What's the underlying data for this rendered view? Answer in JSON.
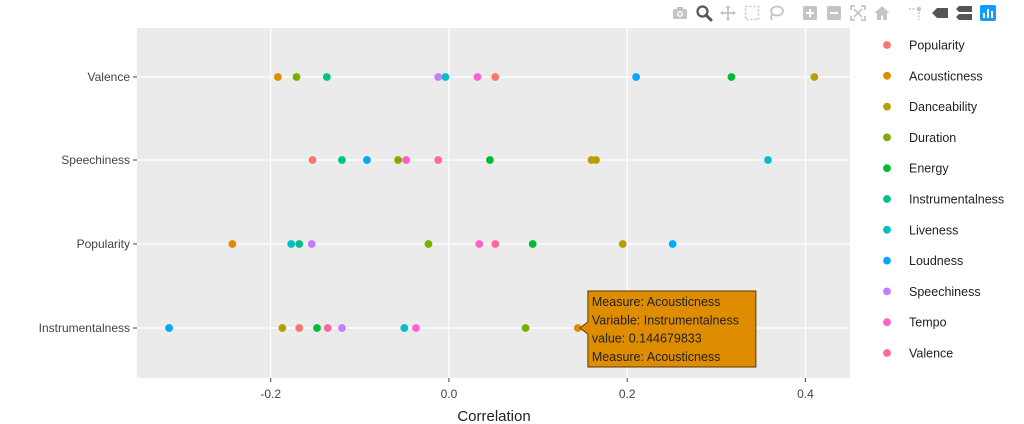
{
  "modebar": {
    "buttons": [
      {
        "name": "camera-icon",
        "title": "Download plot as a png"
      },
      {
        "name": "zoom-icon",
        "title": "Zoom"
      },
      {
        "name": "pan-icon",
        "title": "Pan"
      },
      {
        "name": "box-select-icon",
        "title": "Box Select"
      },
      {
        "name": "lasso-select-icon",
        "title": "Lasso Select"
      },
      {
        "name": "zoom-in-icon",
        "title": "Zoom in"
      },
      {
        "name": "zoom-out-icon",
        "title": "Zoom out"
      },
      {
        "name": "autoscale-icon",
        "title": "Autoscale"
      },
      {
        "name": "home-icon",
        "title": "Reset axes"
      },
      {
        "name": "spike-lines-icon",
        "title": "Toggle Spike Lines"
      },
      {
        "name": "hover-closest-icon",
        "title": "Show closest data on hover"
      },
      {
        "name": "hover-compare-icon",
        "title": "Compare data on hover"
      },
      {
        "name": "plotly-logo-icon",
        "title": "Produced with Plotly"
      }
    ]
  },
  "chart_data": {
    "type": "scatter",
    "title": "",
    "xlabel": "Correlation",
    "ylabel": "",
    "xlim": [
      -0.35,
      0.45
    ],
    "xticks": [
      -0.2,
      0,
      0.2,
      0.4
    ],
    "xtick_labels": [
      "-0.2",
      "0.0",
      "0.2",
      "0.4"
    ],
    "categories": [
      "Instrumentalness",
      "Popularity",
      "Speechiness",
      "Valence"
    ],
    "grid": true,
    "legend_position": "right",
    "background": "#ebebeb",
    "series": [
      {
        "name": "Popularity",
        "color": "#f8766d",
        "points": [
          {
            "y": "Valence",
            "x": 0.052
          },
          {
            "y": "Speechiness",
            "x": -0.153
          },
          {
            "y": "Instrumentalness",
            "x": -0.168
          }
        ]
      },
      {
        "name": "Acousticness",
        "color": "#de8c00",
        "points": [
          {
            "y": "Valence",
            "x": -0.192
          },
          {
            "y": "Popularity",
            "x": -0.243
          },
          {
            "y": "Instrumentalness",
            "x": 0.144679833
          }
        ]
      },
      {
        "name": "Danceability",
        "color": "#b79f00",
        "points": [
          {
            "y": "Valence",
            "x": 0.41
          },
          {
            "y": "Speechiness",
            "x": 0.16
          },
          {
            "y": "Speechiness",
            "x": 0.165
          },
          {
            "y": "Popularity",
            "x": 0.195
          },
          {
            "y": "Instrumentalness",
            "x": -0.187
          }
        ]
      },
      {
        "name": "Duration",
        "color": "#7cae00",
        "points": [
          {
            "y": "Valence",
            "x": -0.171
          },
          {
            "y": "Speechiness",
            "x": -0.057
          },
          {
            "y": "Popularity",
            "x": -0.023
          },
          {
            "y": "Instrumentalness",
            "x": 0.086
          }
        ]
      },
      {
        "name": "Energy",
        "color": "#00ba38",
        "points": [
          {
            "y": "Valence",
            "x": 0.317
          },
          {
            "y": "Speechiness",
            "x": 0.046
          },
          {
            "y": "Popularity",
            "x": 0.094
          },
          {
            "y": "Instrumentalness",
            "x": -0.148
          }
        ]
      },
      {
        "name": "Instrumentalness",
        "color": "#00c08b",
        "points": [
          {
            "y": "Valence",
            "x": -0.137
          },
          {
            "y": "Speechiness",
            "x": -0.12
          },
          {
            "y": "Popularity",
            "x": -0.168
          }
        ]
      },
      {
        "name": "Liveness",
        "color": "#00bfc4",
        "points": [
          {
            "y": "Valence",
            "x": -0.004
          },
          {
            "y": "Speechiness",
            "x": 0.358
          },
          {
            "y": "Popularity",
            "x": -0.177
          },
          {
            "y": "Instrumentalness",
            "x": -0.05
          }
        ]
      },
      {
        "name": "Loudness",
        "color": "#00a9ff",
        "points": [
          {
            "y": "Valence",
            "x": 0.21
          },
          {
            "y": "Speechiness",
            "x": -0.092
          },
          {
            "y": "Popularity",
            "x": 0.251
          },
          {
            "y": "Instrumentalness",
            "x": -0.314
          }
        ]
      },
      {
        "name": "Speechiness",
        "color": "#c77cff",
        "points": [
          {
            "y": "Valence",
            "x": -0.012
          },
          {
            "y": "Popularity",
            "x": -0.154
          },
          {
            "y": "Instrumentalness",
            "x": -0.12
          }
        ]
      },
      {
        "name": "Tempo",
        "color": "#ff61cc",
        "points": [
          {
            "y": "Valence",
            "x": 0.032
          },
          {
            "y": "Speechiness",
            "x": -0.048
          },
          {
            "y": "Popularity",
            "x": 0.034
          },
          {
            "y": "Instrumentalness",
            "x": -0.037
          }
        ]
      },
      {
        "name": "Valence",
        "color": "#ff67a4",
        "points": [
          {
            "y": "Speechiness",
            "x": -0.012
          },
          {
            "y": "Popularity",
            "x": 0.052
          },
          {
            "y": "Instrumentalness",
            "x": -0.136
          }
        ]
      }
    ],
    "tooltip": {
      "color": "#de8c00",
      "anchor": {
        "series": "Acousticness",
        "y": "Instrumentalness",
        "x": 0.144679833
      },
      "lines": [
        "Measure: Acousticness",
        "Variable: Instrumentalness",
        "value:  0.144679833",
        "Measure: Acousticness"
      ]
    }
  }
}
